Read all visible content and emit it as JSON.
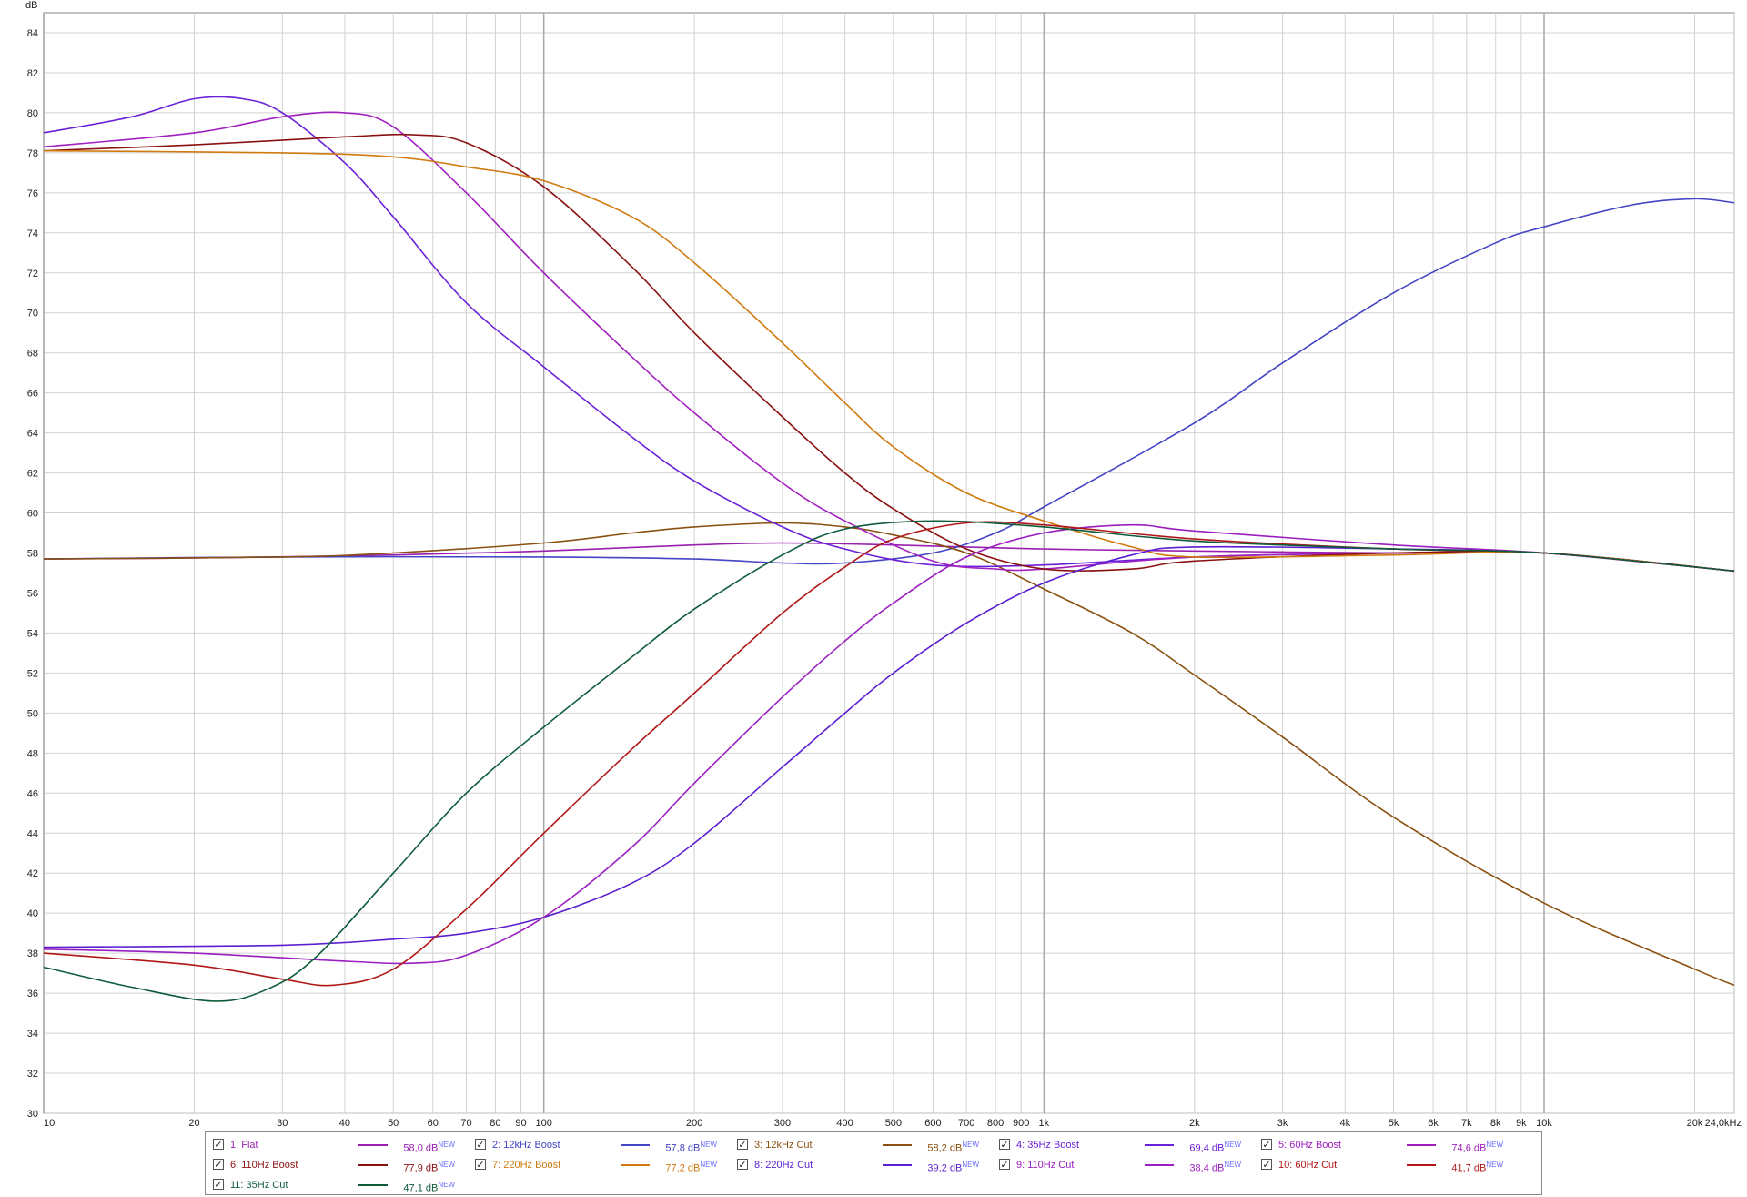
{
  "chart_data": {
    "type": "line",
    "ylabel": "dB",
    "xscale": "log",
    "xlim": [
      10,
      24000
    ],
    "ylim": [
      30,
      85
    ],
    "y_ticks": [
      30,
      32,
      34,
      36,
      38,
      40,
      42,
      44,
      46,
      48,
      50,
      52,
      54,
      56,
      58,
      60,
      62,
      64,
      66,
      68,
      70,
      72,
      74,
      76,
      78,
      80,
      82,
      84
    ],
    "x_ticks": [
      {
        "v": 10,
        "label": "10"
      },
      {
        "v": 20,
        "label": "20"
      },
      {
        "v": 30,
        "label": "30"
      },
      {
        "v": 40,
        "label": "40"
      },
      {
        "v": 50,
        "label": "50"
      },
      {
        "v": 60,
        "label": "60"
      },
      {
        "v": 70,
        "label": "70"
      },
      {
        "v": 80,
        "label": "80"
      },
      {
        "v": 90,
        "label": "90"
      },
      {
        "v": 100,
        "label": "100"
      },
      {
        "v": 200,
        "label": "200"
      },
      {
        "v": 300,
        "label": "300"
      },
      {
        "v": 400,
        "label": "400"
      },
      {
        "v": 500,
        "label": "500"
      },
      {
        "v": 600,
        "label": "600"
      },
      {
        "v": 700,
        "label": "700"
      },
      {
        "v": 800,
        "label": "800"
      },
      {
        "v": 900,
        "label": "900"
      },
      {
        "v": 1000,
        "label": "1k"
      },
      {
        "v": 2000,
        "label": "2k"
      },
      {
        "v": 3000,
        "label": "3k"
      },
      {
        "v": 4000,
        "label": "4k"
      },
      {
        "v": 5000,
        "label": "5k"
      },
      {
        "v": 6000,
        "label": "6k"
      },
      {
        "v": 7000,
        "label": "7k"
      },
      {
        "v": 8000,
        "label": "8k"
      },
      {
        "v": 9000,
        "label": "9k"
      },
      {
        "v": 10000,
        "label": "10k"
      },
      {
        "v": 20000,
        "label": "20k"
      },
      {
        "v": 24000,
        "label": "24,0kHz"
      }
    ],
    "grid": true,
    "legend_position": "bottom",
    "series": [
      {
        "name": "1: Flat",
        "value_label": "58,0 dB",
        "color": "#9a1fb0",
        "points": [
          [
            10,
            57.7
          ],
          [
            20,
            57.75
          ],
          [
            50,
            57.9
          ],
          [
            100,
            58.1
          ],
          [
            200,
            58.4
          ],
          [
            300,
            58.5
          ],
          [
            500,
            58.4
          ],
          [
            1000,
            58.2
          ],
          [
            2000,
            58.1
          ],
          [
            5000,
            58.0
          ],
          [
            10000,
            58.0
          ],
          [
            24000,
            57.1
          ]
        ]
      },
      {
        "name": "2: 12kHz Boost",
        "value_label": "57,8 dB",
        "color": "#4444c4",
        "points": [
          [
            10,
            57.7
          ],
          [
            30,
            57.8
          ],
          [
            100,
            57.8
          ],
          [
            200,
            57.7
          ],
          [
            300,
            57.5
          ],
          [
            400,
            57.5
          ],
          [
            600,
            58.0
          ],
          [
            800,
            59.0
          ],
          [
            1000,
            60.3
          ],
          [
            2000,
            64.5
          ],
          [
            3000,
            67.5
          ],
          [
            5000,
            71.0
          ],
          [
            8000,
            73.5
          ],
          [
            10000,
            74.3
          ],
          [
            15000,
            75.4
          ],
          [
            20000,
            75.7
          ],
          [
            24000,
            75.5
          ]
        ]
      },
      {
        "name": "3: 12kHz Cut",
        "value_label": "58,2 dB",
        "color": "#8a5010",
        "points": [
          [
            10,
            57.7
          ],
          [
            30,
            57.8
          ],
          [
            50,
            58.0
          ],
          [
            100,
            58.5
          ],
          [
            150,
            59.0
          ],
          [
            200,
            59.3
          ],
          [
            300,
            59.5
          ],
          [
            400,
            59.3
          ],
          [
            500,
            58.9
          ],
          [
            700,
            58.0
          ],
          [
            1000,
            56.2
          ],
          [
            1500,
            54.0
          ],
          [
            2000,
            51.9
          ],
          [
            3000,
            48.8
          ],
          [
            5000,
            44.8
          ],
          [
            10000,
            40.5
          ],
          [
            20000,
            37.2
          ],
          [
            24000,
            36.4
          ]
        ]
      },
      {
        "name": "4: 35Hz Boost",
        "value_label": "69,4 dB",
        "color": "#6a1fd8",
        "points": [
          [
            10,
            79.0
          ],
          [
            15,
            79.8
          ],
          [
            20,
            80.7
          ],
          [
            25,
            80.7
          ],
          [
            30,
            80.0
          ],
          [
            40,
            77.5
          ],
          [
            50,
            74.8
          ],
          [
            70,
            70.5
          ],
          [
            100,
            67.3
          ],
          [
            150,
            63.8
          ],
          [
            200,
            61.6
          ],
          [
            300,
            59.3
          ],
          [
            400,
            58.2
          ],
          [
            600,
            57.4
          ],
          [
            1000,
            57.4
          ],
          [
            2000,
            57.8
          ],
          [
            5000,
            58.0
          ],
          [
            10000,
            58.0
          ],
          [
            24000,
            57.1
          ]
        ]
      },
      {
        "name": "5: 60Hz Boost",
        "value_label": "74,6 dB",
        "color": "#a11fc0",
        "points": [
          [
            10,
            78.3
          ],
          [
            20,
            79.0
          ],
          [
            30,
            79.8
          ],
          [
            40,
            80.0
          ],
          [
            50,
            79.3
          ],
          [
            70,
            76.0
          ],
          [
            100,
            72.0
          ],
          [
            150,
            67.8
          ],
          [
            200,
            65.0
          ],
          [
            300,
            61.5
          ],
          [
            400,
            59.6
          ],
          [
            600,
            57.6
          ],
          [
            800,
            57.2
          ],
          [
            1000,
            57.2
          ],
          [
            2000,
            57.8
          ],
          [
            5000,
            58.0
          ],
          [
            10000,
            58.0
          ],
          [
            24000,
            57.1
          ]
        ]
      },
      {
        "name": "6: 110Hz Boost",
        "value_label": "77,9 dB",
        "color": "#8a1010",
        "points": [
          [
            10,
            78.1
          ],
          [
            20,
            78.4
          ],
          [
            40,
            78.8
          ],
          [
            55,
            78.9
          ],
          [
            70,
            78.5
          ],
          [
            100,
            76.3
          ],
          [
            150,
            72.3
          ],
          [
            200,
            69.0
          ],
          [
            300,
            64.8
          ],
          [
            400,
            62.0
          ],
          [
            500,
            60.2
          ],
          [
            700,
            58.2
          ],
          [
            1000,
            57.2
          ],
          [
            1500,
            57.2
          ],
          [
            2000,
            57.6
          ],
          [
            5000,
            58.0
          ],
          [
            10000,
            58.0
          ],
          [
            24000,
            57.1
          ]
        ]
      },
      {
        "name": "7: 220Hz Boost",
        "value_label": "77,2 dB",
        "color": "#d07a10",
        "points": [
          [
            10,
            78.1
          ],
          [
            30,
            78.0
          ],
          [
            50,
            77.8
          ],
          [
            70,
            77.3
          ],
          [
            100,
            76.6
          ],
          [
            150,
            74.8
          ],
          [
            200,
            72.5
          ],
          [
            300,
            68.5
          ],
          [
            400,
            65.5
          ],
          [
            500,
            63.3
          ],
          [
            700,
            61.0
          ],
          [
            1000,
            59.6
          ],
          [
            1500,
            58.3
          ],
          [
            2000,
            57.8
          ],
          [
            5000,
            57.9
          ],
          [
            10000,
            58.0
          ],
          [
            24000,
            57.1
          ]
        ]
      },
      {
        "name": "8: 220Hz Cut",
        "value_label": "39,2 dB",
        "color": "#5a1fd0",
        "points": [
          [
            10,
            38.3
          ],
          [
            30,
            38.4
          ],
          [
            50,
            38.7
          ],
          [
            70,
            39.0
          ],
          [
            100,
            39.8
          ],
          [
            150,
            41.5
          ],
          [
            200,
            43.5
          ],
          [
            300,
            47.3
          ],
          [
            400,
            50.0
          ],
          [
            500,
            52.0
          ],
          [
            700,
            54.5
          ],
          [
            1000,
            56.5
          ],
          [
            1500,
            57.9
          ],
          [
            2000,
            58.3
          ],
          [
            5000,
            58.2
          ],
          [
            10000,
            58.0
          ],
          [
            24000,
            57.1
          ]
        ]
      },
      {
        "name": "9: 110Hz Cut",
        "value_label": "38,4 dB",
        "color": "#9a1fc0",
        "points": [
          [
            10,
            38.2
          ],
          [
            20,
            38.0
          ],
          [
            40,
            37.6
          ],
          [
            55,
            37.5
          ],
          [
            70,
            37.9
          ],
          [
            100,
            39.8
          ],
          [
            150,
            43.3
          ],
          [
            200,
            46.5
          ],
          [
            300,
            50.8
          ],
          [
            400,
            53.6
          ],
          [
            500,
            55.5
          ],
          [
            700,
            57.8
          ],
          [
            1000,
            59.0
          ],
          [
            1500,
            59.4
          ],
          [
            2000,
            59.1
          ],
          [
            5000,
            58.4
          ],
          [
            10000,
            58.0
          ],
          [
            24000,
            57.1
          ]
        ]
      },
      {
        "name": "10: 60Hz Cut",
        "value_label": "41,7 dB",
        "color": "#b01818",
        "points": [
          [
            10,
            38.0
          ],
          [
            20,
            37.4
          ],
          [
            30,
            36.7
          ],
          [
            38,
            36.4
          ],
          [
            50,
            37.2
          ],
          [
            70,
            40.2
          ],
          [
            100,
            44.0
          ],
          [
            150,
            48.2
          ],
          [
            200,
            51.0
          ],
          [
            300,
            55.0
          ],
          [
            400,
            57.3
          ],
          [
            500,
            58.7
          ],
          [
            700,
            59.5
          ],
          [
            1000,
            59.4
          ],
          [
            2000,
            58.7
          ],
          [
            5000,
            58.2
          ],
          [
            10000,
            58.0
          ],
          [
            24000,
            57.1
          ]
        ]
      },
      {
        "name": "11: 35Hz Cut",
        "value_label": "47,1 dB",
        "color": "#0f5c3a",
        "points": [
          [
            10,
            37.3
          ],
          [
            15,
            36.3
          ],
          [
            22,
            35.6
          ],
          [
            28,
            36.2
          ],
          [
            35,
            37.8
          ],
          [
            50,
            42.0
          ],
          [
            70,
            46.0
          ],
          [
            100,
            49.3
          ],
          [
            150,
            52.8
          ],
          [
            200,
            55.2
          ],
          [
            300,
            57.9
          ],
          [
            400,
            59.2
          ],
          [
            600,
            59.6
          ],
          [
            1000,
            59.3
          ],
          [
            2000,
            58.6
          ],
          [
            5000,
            58.2
          ],
          [
            10000,
            58.0
          ],
          [
            24000,
            57.1
          ]
        ]
      }
    ]
  },
  "legend": {
    "new_tag": "NEW",
    "check_glyph": "✓"
  }
}
